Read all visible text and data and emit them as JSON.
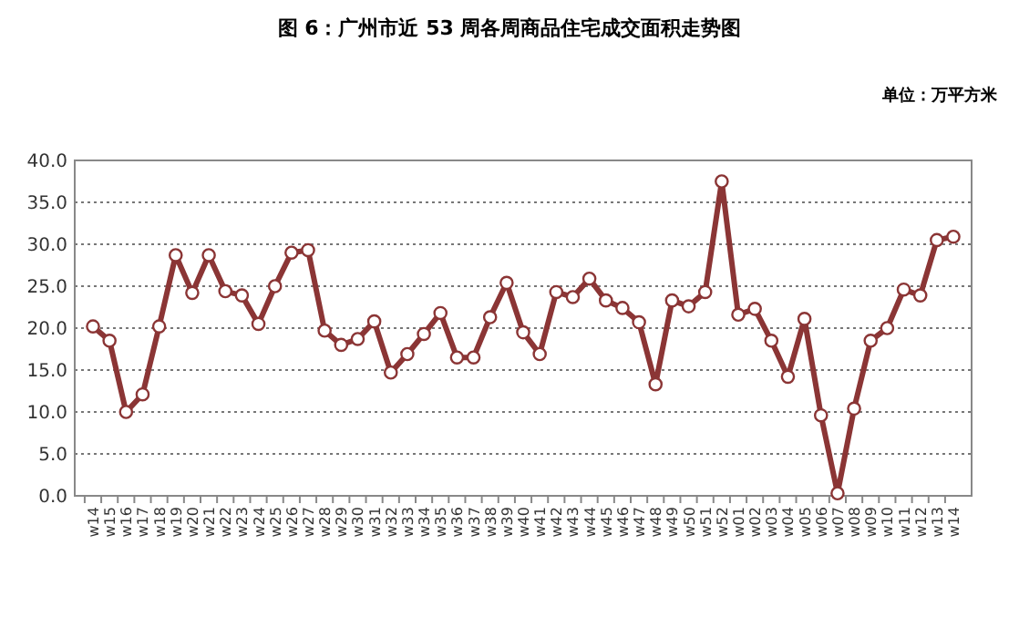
{
  "chart_data": {
    "type": "line",
    "title": "图 6：广州市近 53 周各周商品住宅成交面积走势图",
    "annotations": [
      "单位：万平方米"
    ],
    "categories": [
      "w14",
      "w15",
      "w16",
      "w17",
      "w18",
      "w19",
      "w20",
      "w21",
      "w22",
      "w23",
      "w24",
      "w25",
      "w26",
      "w27",
      "w28",
      "w29",
      "w30",
      "w31",
      "w32",
      "w33",
      "w34",
      "w35",
      "w36",
      "w37",
      "w38",
      "w39",
      "w40",
      "w41",
      "w42",
      "w43",
      "w44",
      "w45",
      "w46",
      "w47",
      "w48",
      "w49",
      "w50",
      "w51",
      "w52",
      "w01",
      "w02",
      "w03",
      "w04",
      "w05",
      "w06",
      "w07",
      "w08",
      "w09",
      "w10",
      "w11",
      "w12",
      "w13",
      "w14"
    ],
    "series": [
      {
        "color": "#8b3535",
        "values": [
          20.2,
          18.5,
          10.0,
          12.1,
          20.2,
          28.7,
          24.2,
          28.7,
          24.4,
          23.9,
          20.5,
          25.0,
          29.0,
          29.3,
          19.7,
          18.0,
          18.7,
          20.8,
          14.7,
          16.9,
          19.3,
          21.8,
          16.5,
          16.5,
          21.3,
          25.4,
          19.5,
          16.9,
          24.3,
          23.7,
          25.9,
          23.3,
          22.4,
          20.7,
          13.3,
          23.3,
          22.6,
          24.3,
          37.5,
          21.6,
          22.3,
          18.5,
          14.2,
          21.1,
          9.6,
          0.3,
          10.4,
          18.5,
          20.0,
          24.6,
          23.9,
          30.5,
          30.9
        ]
      }
    ],
    "ylim": [
      0,
      40
    ],
    "yticks": [
      {
        "value": 0,
        "label": "0.0"
      },
      {
        "value": 5,
        "label": "5.0"
      },
      {
        "value": 10,
        "label": "10.0"
      },
      {
        "value": 15,
        "label": "15.0"
      },
      {
        "value": 20,
        "label": "20.0"
      },
      {
        "value": 25,
        "label": "25.0"
      },
      {
        "value": 30,
        "label": "30.0"
      },
      {
        "value": 35,
        "label": "35.0"
      },
      {
        "value": 40,
        "label": "40.0"
      }
    ],
    "grid": "y",
    "marker": "circle",
    "line_style": "solid"
  }
}
